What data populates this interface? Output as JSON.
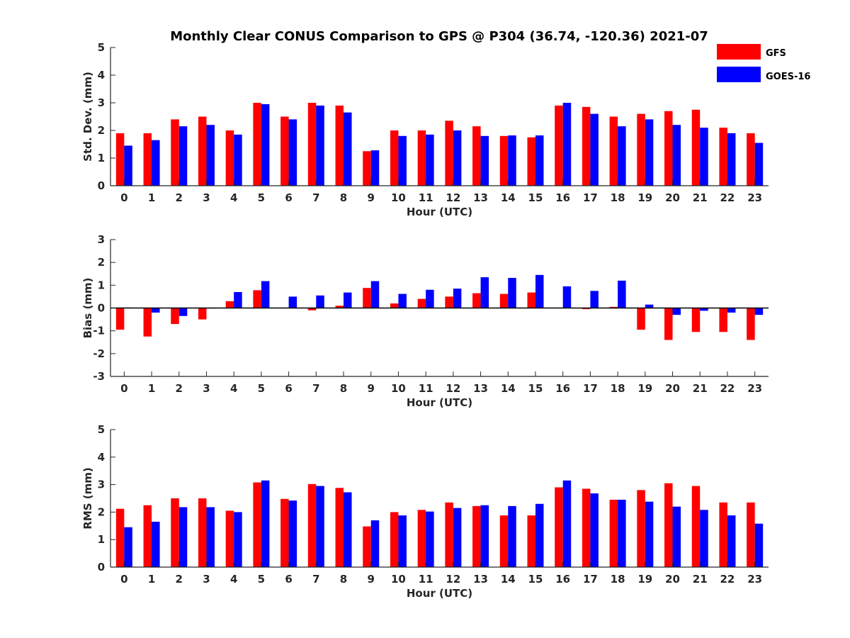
{
  "figure": {
    "title": "Monthly Clear CONUS Comparison to GPS @ P304 (36.74, -120.36) 2021-07"
  },
  "legend": {
    "placement": "top-right",
    "entries": [
      {
        "label": "GFS",
        "color": "#ff0000"
      },
      {
        "label": "GOES-16",
        "color": "#0000ff"
      }
    ]
  },
  "chart_data": [
    {
      "type": "bar",
      "xlabel": "Hour (UTC)",
      "ylabel": "Std. Dev. (mm)",
      "ylim": [
        0,
        5
      ],
      "yticks": [
        0,
        1,
        2,
        3,
        4,
        5
      ],
      "categories": [
        "0",
        "1",
        "2",
        "3",
        "4",
        "5",
        "6",
        "7",
        "8",
        "9",
        "10",
        "11",
        "12",
        "13",
        "14",
        "15",
        "16",
        "17",
        "18",
        "19",
        "20",
        "21",
        "22",
        "23"
      ],
      "series": [
        {
          "name": "GFS",
          "color": "#ff0000",
          "values": [
            1.9,
            1.9,
            2.4,
            2.5,
            2.0,
            3.0,
            2.5,
            3.0,
            2.9,
            1.25,
            2.0,
            2.0,
            2.35,
            2.15,
            1.8,
            1.75,
            2.9,
            2.85,
            2.5,
            2.6,
            2.7,
            2.75,
            2.1,
            1.9
          ]
        },
        {
          "name": "GOES-16",
          "color": "#0000ff",
          "values": [
            1.45,
            1.65,
            2.15,
            2.2,
            1.85,
            2.95,
            2.4,
            2.9,
            2.65,
            1.28,
            1.8,
            1.85,
            2.0,
            1.8,
            1.82,
            1.82,
            3.0,
            2.6,
            2.15,
            2.4,
            2.2,
            2.1,
            1.9,
            1.55
          ]
        }
      ]
    },
    {
      "type": "bar",
      "xlabel": "Hour (UTC)",
      "ylabel": "Bias (mm)",
      "ylim": [
        -3,
        3
      ],
      "yticks": [
        -3,
        -2,
        -1,
        0,
        1,
        2,
        3
      ],
      "categories": [
        "0",
        "1",
        "2",
        "3",
        "4",
        "5",
        "6",
        "7",
        "8",
        "9",
        "10",
        "11",
        "12",
        "13",
        "14",
        "15",
        "16",
        "17",
        "18",
        "19",
        "20",
        "21",
        "22",
        "23"
      ],
      "series": [
        {
          "name": "GFS",
          "color": "#ff0000",
          "values": [
            -0.95,
            -1.25,
            -0.7,
            -0.5,
            0.3,
            0.78,
            0.02,
            -0.1,
            0.1,
            0.88,
            0.2,
            0.4,
            0.5,
            0.65,
            0.62,
            0.68,
            0.0,
            -0.05,
            0.05,
            -0.95,
            -1.4,
            -1.05,
            -1.05,
            -1.4
          ]
        },
        {
          "name": "GOES-16",
          "color": "#0000ff",
          "values": [
            0.02,
            -0.2,
            -0.35,
            -0.02,
            0.7,
            1.18,
            0.5,
            0.55,
            0.68,
            1.18,
            0.62,
            0.8,
            0.85,
            1.35,
            1.32,
            1.45,
            0.95,
            0.75,
            1.2,
            0.15,
            -0.3,
            -0.12,
            -0.2,
            -0.3
          ]
        }
      ]
    },
    {
      "type": "bar",
      "xlabel": "Hour (UTC)",
      "ylabel": "RMS (mm)",
      "ylim": [
        0,
        5
      ],
      "yticks": [
        0,
        1,
        2,
        3,
        4,
        5
      ],
      "categories": [
        "0",
        "1",
        "2",
        "3",
        "4",
        "5",
        "6",
        "7",
        "8",
        "9",
        "10",
        "11",
        "12",
        "13",
        "14",
        "15",
        "16",
        "17",
        "18",
        "19",
        "20",
        "21",
        "22",
        "23"
      ],
      "series": [
        {
          "name": "GFS",
          "color": "#ff0000",
          "values": [
            2.12,
            2.25,
            2.5,
            2.5,
            2.05,
            3.08,
            2.48,
            3.02,
            2.88,
            1.48,
            2.0,
            2.08,
            2.35,
            2.22,
            1.88,
            1.88,
            2.9,
            2.85,
            2.45,
            2.8,
            3.05,
            2.95,
            2.35,
            2.35
          ]
        },
        {
          "name": "GOES-16",
          "color": "#0000ff",
          "values": [
            1.45,
            1.65,
            2.18,
            2.18,
            2.0,
            3.15,
            2.42,
            2.95,
            2.72,
            1.7,
            1.88,
            2.02,
            2.15,
            2.25,
            2.22,
            2.3,
            3.15,
            2.68,
            2.45,
            2.38,
            2.2,
            2.08,
            1.88,
            1.58
          ]
        }
      ]
    }
  ]
}
